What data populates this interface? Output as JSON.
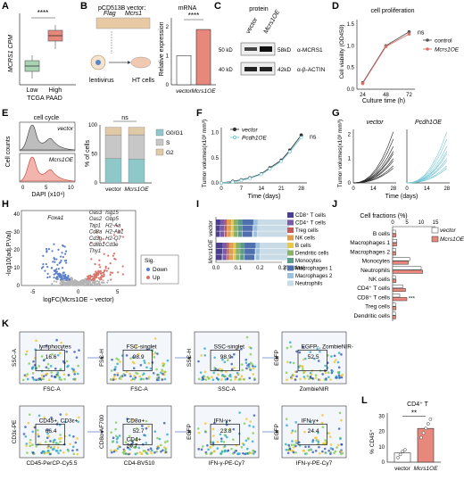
{
  "panels": {
    "A": {
      "label": "A",
      "ylabel": "MCRS1 CPM",
      "groups": [
        "Low",
        "High"
      ],
      "xlabel": "TCGA PAAD",
      "sig": "****"
    },
    "B": {
      "label": "B",
      "title": "pCD513B vector:",
      "flag": "Flag",
      "gene": "Mcrs1",
      "lenti": "lentivirus",
      "cells": "HT cells",
      "chart_title": "mRNA",
      "ylabel": "Relative expression",
      "categories": [
        "vector",
        "Mcrs1OE"
      ],
      "yticks": [
        "0",
        "1",
        "2"
      ],
      "sig": "****"
    },
    "C": {
      "label": "C",
      "title": "protein",
      "lanes": [
        "vector",
        "Mcrs1OE"
      ],
      "bands": [
        {
          "kd": "58kD",
          "name": "α-MCRS1"
        },
        {
          "kd": "42kD",
          "name": "α-β-ACTIN"
        }
      ],
      "markers": [
        "50 kD",
        "40 kD"
      ]
    },
    "D": {
      "label": "D",
      "title": "cell proliferation",
      "ylabel": "Cell viability (OD450)",
      "xlabel": "Culture time (h)",
      "xticks": [
        "24",
        "48",
        "72"
      ],
      "yticks": [
        "0.0",
        "0.5",
        "1.0",
        "1.5"
      ],
      "legend": [
        "control",
        "Mcrs1OE"
      ],
      "sig": "ns"
    },
    "E": {
      "label": "E",
      "title": "cell cycle",
      "ylabel": "Cell counts",
      "xlabel": "DAPI (x10⁴)",
      "xticks": [
        "0",
        "5",
        "10"
      ],
      "hist_labels": [
        "vector",
        "Mcrs1OE"
      ],
      "bar_ylabel": "% of cells",
      "bar_yticks": [
        "0",
        "50",
        "100"
      ],
      "bar_categories": [
        "vector",
        "Mcrs1OE"
      ],
      "legend": [
        "G0/G1",
        "S",
        "G2"
      ],
      "sig": "ns"
    },
    "F": {
      "label": "F",
      "ylabel": "Tumor volumes(x10³ mm³)",
      "xlabel": "Time (days)",
      "xticks": [
        "0",
        "7",
        "14",
        "21",
        "28"
      ],
      "yticks": [
        "0.0",
        "0.5",
        "1.0"
      ],
      "legend": [
        "vector",
        "Pcdh1OE"
      ],
      "sig": "ns"
    },
    "G": {
      "label": "G",
      "ylabel": "Tumor volumes(x10³ mm³)",
      "xlabel": "Time (days)",
      "xticks": [
        "0",
        "14",
        "28"
      ],
      "yticks": [
        "0",
        "1",
        "2"
      ],
      "groups": [
        "vector",
        "Pcdh1OE"
      ]
    },
    "H": {
      "label": "H",
      "ylabel": "-log10(adj.P.Val)",
      "xlabel": "logFC(Mcrs1OE − vector)",
      "xticks": [
        "-5",
        "0",
        "5"
      ],
      "yticks": [
        "0",
        "10",
        "20",
        "30",
        "40"
      ],
      "genes_left": [
        "Foxa1"
      ],
      "genes_right": [
        "Oas3",
        "Isg15",
        "Oas2",
        "Gbp5",
        "Tap1",
        "H2-Aa",
        "Cd8a",
        "H2-Ab1",
        "Cd3g",
        "H2-Q7",
        "Cd8b1",
        "Cd3e",
        "Thy1"
      ],
      "legend_title": "Sig.",
      "legend": [
        "Down",
        "Up"
      ]
    },
    "I": {
      "label": "I",
      "rows": [
        "vector",
        "Mcrs1OE"
      ],
      "xticks": [
        "0.0",
        "0.1",
        "0.2",
        "0.3"
      ],
      "xlabel": "(fraction)",
      "legend": [
        "CD8⁺ T cells",
        "CD4⁺ T cells",
        "Treg cells",
        "NK cells",
        "B cells",
        "Dendritic cells",
        "Monocytes",
        "Macrophages 1",
        "Macrophages 2",
        "Neutrophils"
      ]
    },
    "J": {
      "label": "J",
      "title": "Cell fractions (%)",
      "xticks": [
        "0",
        "5",
        "10",
        "15"
      ],
      "rows": [
        "B cells",
        "Macrophages 1",
        "Macrophages 2",
        "Monocytes",
        "Neutrophils",
        "NK cells",
        "CD4⁺ T cells",
        "CD8⁺ T cells",
        "Treg cells",
        "Dendritic cells"
      ],
      "legend": [
        "vector",
        "Mcrs1OE"
      ],
      "sig": "***"
    },
    "K": {
      "label": "K",
      "top": [
        {
          "x": "FSC-A",
          "y": "SSC-A",
          "gate": "lymphocytes",
          "val": "16.6"
        },
        {
          "x": "FSC-A",
          "y": "FSC-H",
          "gate": "FSC-singlet",
          "val": "98.9"
        },
        {
          "x": "SSC-A",
          "y": "SSC-H",
          "gate": "SSC-singlet",
          "val": "98.9"
        },
        {
          "x": "ZombieNIR",
          "y": "EGFP",
          "gate": "EGFP-, ZombieNIR-",
          "val": "52.5"
        }
      ],
      "bottom": [
        {
          "x": "CD45-PerCP-Cy5.5",
          "y": "CD3ε-PE",
          "gate": "CD45+, CD3ε+",
          "val": "66.4"
        },
        {
          "x": "CD4-BV510",
          "y": "CD8α-AF700",
          "gate": "CD8α+",
          "val": "52.7",
          "gate2": "CD4+",
          "val2": "26.7"
        },
        {
          "x": "IFN-γ-PE-Cy7",
          "y": "EGFP",
          "gate": "IFN-γ+",
          "val": "23.8"
        },
        {
          "x": "IFN-γ-PE-Cy7",
          "y": "EGFP",
          "gate": "IFN-γ+",
          "val": "24.4"
        }
      ]
    },
    "L": {
      "label": "L",
      "title": "CD4⁺ T",
      "ylabel": "% CD45⁺",
      "categories": [
        "vector",
        "Mcrs1OE"
      ],
      "yticks": [
        "0",
        "10",
        "20",
        "30"
      ],
      "sig": "**"
    }
  },
  "chart_data": [
    {
      "type": "bar",
      "panel": "B",
      "categories": [
        "vector",
        "Mcrs1OE"
      ],
      "values": [
        1.0,
        1.9
      ],
      "ylim": [
        0,
        2.3
      ]
    },
    {
      "type": "line",
      "panel": "D",
      "x": [
        24,
        48,
        72
      ],
      "series": [
        {
          "name": "control",
          "values": [
            0.15,
            1.0,
            1.32
          ]
        },
        {
          "name": "Mcrs1OE",
          "values": [
            0.13,
            0.98,
            1.27
          ]
        }
      ],
      "ylim": [
        0,
        1.6
      ]
    },
    {
      "type": "bar",
      "panel": "E",
      "categories": [
        "vector",
        "Mcrs1OE"
      ],
      "series": [
        {
          "name": "G0/G1",
          "values": [
            42,
            41
          ]
        },
        {
          "name": "S",
          "values": [
            40,
            42
          ]
        },
        {
          "name": "G2",
          "values": [
            14,
            13
          ]
        }
      ],
      "ylim": [
        0,
        100
      ]
    },
    {
      "type": "line",
      "panel": "F",
      "x": [
        0,
        4,
        7,
        10,
        14,
        17,
        21,
        24,
        28
      ],
      "series": [
        {
          "name": "vector",
          "values": [
            0.0,
            0.03,
            0.06,
            0.1,
            0.18,
            0.3,
            0.45,
            0.65,
            0.95
          ]
        },
        {
          "name": "Pcdh1OE",
          "values": [
            0.0,
            0.02,
            0.05,
            0.09,
            0.17,
            0.28,
            0.43,
            0.62,
            0.9
          ]
        }
      ],
      "ylim": [
        0,
        1.1
      ]
    },
    {
      "type": "bar",
      "panel": "I",
      "categories": [
        "vector",
        "Mcrs1OE"
      ],
      "series": [
        {
          "name": "CD8⁺ T cells",
          "values": [
            0.02,
            0.03
          ]
        },
        {
          "name": "CD4⁺ T cells",
          "values": [
            0.02,
            0.02
          ]
        },
        {
          "name": "Treg cells",
          "values": [
            0.01,
            0.01
          ]
        },
        {
          "name": "NK cells",
          "values": [
            0.02,
            0.02
          ]
        },
        {
          "name": "B cells",
          "values": [
            0.01,
            0.01
          ]
        },
        {
          "name": "Dendritic cells",
          "values": [
            0.02,
            0.02
          ]
        },
        {
          "name": "Monocytes",
          "values": [
            0.02,
            0.02
          ]
        },
        {
          "name": "Macrophages 1",
          "values": [
            0.05,
            0.05
          ]
        },
        {
          "name": "Macrophages 2",
          "values": [
            0.02,
            0.02
          ]
        },
        {
          "name": "Neutrophils",
          "values": [
            0.15,
            0.14
          ]
        }
      ],
      "xlim": [
        0,
        0.3
      ]
    },
    {
      "type": "bar",
      "panel": "J",
      "categories": [
        "B cells",
        "Macrophages 1",
        "Macrophages 2",
        "Monocytes",
        "Neutrophils",
        "NK cells",
        "CD4⁺ T cells",
        "CD8⁺ T cells",
        "Treg cells",
        "Dendritic cells"
      ],
      "series": [
        {
          "name": "vector",
          "values": [
            1,
            1.5,
            1,
            6,
            10,
            1,
            3.5,
            2.5,
            1,
            1
          ]
        },
        {
          "name": "Mcrs1OE",
          "values": [
            1.2,
            1.4,
            1.1,
            5.5,
            10.5,
            1.2,
            4.5,
            5,
            1.2,
            1.1
          ]
        }
      ],
      "xlim": [
        0,
        15
      ]
    },
    {
      "type": "bar",
      "panel": "L",
      "categories": [
        "vector",
        "Mcrs1OE"
      ],
      "values": [
        6,
        22
      ],
      "ylim": [
        0,
        32
      ]
    }
  ],
  "colors": {
    "red": "#d9736a",
    "red_dark": "#c0392b",
    "teal": "#73c6d4",
    "blue": "#5b7ec9",
    "gray": "#555555",
    "green": "#8dbe8e",
    "box_low": "#a8d4b3",
    "box_high": "#e8887c"
  }
}
